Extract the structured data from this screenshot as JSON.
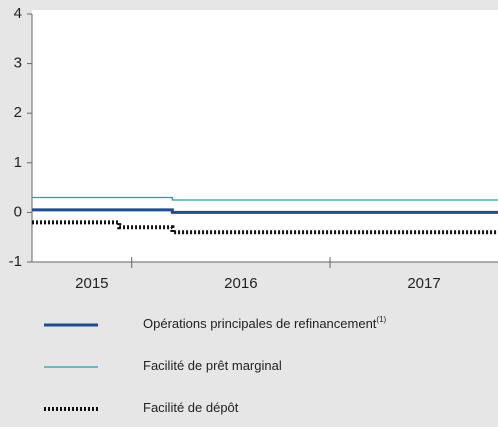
{
  "chart_data": {
    "type": "line",
    "step": true,
    "ylim": [
      -1,
      4
    ],
    "yticks": [
      -1,
      0,
      1,
      2,
      3,
      4
    ],
    "xlim": [
      "2015-07-01",
      "2017-11-07"
    ],
    "xticks": [
      "2016-01-01",
      "2017-01-01"
    ],
    "x_labels": [
      "2015",
      "2016",
      "2017"
    ],
    "series": [
      {
        "name": "Opérations principales de refinancement",
        "name_note": "(1)",
        "color": "#1f4e8c",
        "style": "solid-thick",
        "x": [
          "2015-07-01",
          "2016-03-16",
          "2017-11-07"
        ],
        "values": [
          0.05,
          0,
          0
        ]
      },
      {
        "name": "Facilité de prêt marginal",
        "color": "#2a9bb0",
        "style": "solid-thin",
        "x": [
          "2015-07-01",
          "2016-03-16",
          "2017-11-07"
        ],
        "values": [
          0.3,
          0.25,
          0.25
        ]
      },
      {
        "name": "Facilité de dépôt",
        "color": "#111111",
        "style": "dotted",
        "x": [
          "2015-07-01",
          "2015-12-09",
          "2016-03-16",
          "2017-11-07"
        ],
        "values": [
          -0.2,
          -0.3,
          -0.4,
          -0.4
        ]
      }
    ]
  }
}
